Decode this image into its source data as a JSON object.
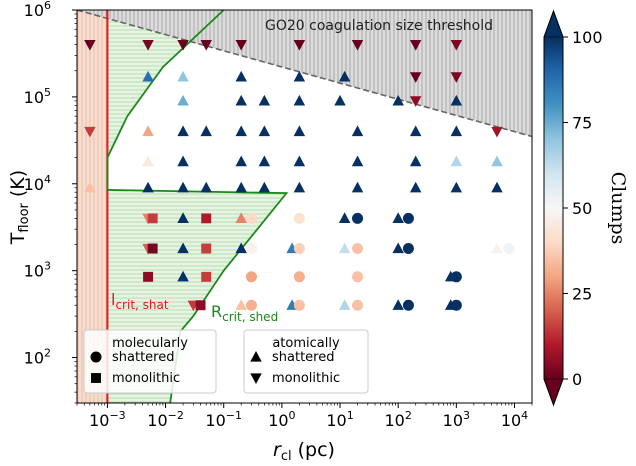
{
  "chart_data": {
    "type": "scatter",
    "x_scale": "log",
    "y_scale": "log",
    "xlim": [
      0.0003,
      20000
    ],
    "ylim": [
      30,
      1000000
    ],
    "xlabel_main": "r",
    "xlabel_sub": "cl",
    "xlabel_unit": " (pc)",
    "ylabel_main": "T",
    "ylabel_sub": "floor",
    "ylabel_unit": " (K)",
    "x_ticks": [
      {
        "value": 0.001,
        "base": "10",
        "exp": "−3"
      },
      {
        "value": 0.01,
        "base": "10",
        "exp": "−2"
      },
      {
        "value": 0.1,
        "base": "10",
        "exp": "−1"
      },
      {
        "value": 1,
        "base": "10",
        "exp": "0"
      },
      {
        "value": 10,
        "base": "10",
        "exp": "1"
      },
      {
        "value": 100,
        "base": "10",
        "exp": "2"
      },
      {
        "value": 1000,
        "base": "10",
        "exp": "3"
      },
      {
        "value": 10000,
        "base": "10",
        "exp": "4"
      }
    ],
    "y_ticks": [
      {
        "value": 100,
        "base": "10",
        "exp": "2"
      },
      {
        "value": 1000,
        "base": "10",
        "exp": "3"
      },
      {
        "value": 10000,
        "base": "10",
        "exp": "4"
      },
      {
        "value": 100000,
        "base": "10",
        "exp": "5"
      },
      {
        "value": 1000000,
        "base": "10",
        "exp": "6"
      }
    ],
    "colorbar": {
      "label": "Clumps",
      "min": 0,
      "max": 100,
      "ticks": [
        0,
        25,
        50,
        75,
        100
      ],
      "colormap": [
        "#67001f",
        "#b2182b",
        "#d6604d",
        "#f4a582",
        "#fddbc7",
        "#f7f7f7",
        "#d1e5f0",
        "#92c5de",
        "#4393c3",
        "#2166ac",
        "#053061"
      ],
      "extend": "both"
    },
    "annotations": {
      "coag_label": "GO20 coagulation size threshold",
      "lshat_main": "l",
      "lshat_sub": "crit, shat",
      "rshed_main": "R",
      "rshed_sub": "crit, shed"
    },
    "lines": {
      "lshat_x": 0.001,
      "lshat_color": "#e41a1c",
      "coag_line": [
        [
          0.0003,
          1000000
        ],
        [
          20000,
          35000
        ]
      ],
      "rshed_color": "#1a8a1a",
      "rshed_curve": [
        [
          0.001,
          8500
        ],
        [
          0.001,
          20000
        ],
        [
          0.0022,
          60000
        ],
        [
          0.009,
          220000
        ],
        [
          0.1,
          1000000
        ]
      ],
      "rshed_lower": [
        [
          0.001,
          8500
        ],
        [
          1.2,
          7800
        ],
        [
          0.1,
          1000
        ],
        [
          0.03,
          300
        ],
        [
          0.018,
          200
        ],
        [
          0.012,
          30
        ]
      ]
    },
    "legend": {
      "group1_title": "molecularly",
      "group2_title": "atomically",
      "entries": [
        {
          "group": 1,
          "marker": "circle",
          "label": "shattered"
        },
        {
          "group": 1,
          "marker": "square",
          "label": "monolithic"
        },
        {
          "group": 2,
          "marker": "triangle-up",
          "label": "shattered"
        },
        {
          "group": 2,
          "marker": "triangle-down",
          "label": "monolithic"
        }
      ]
    },
    "points": [
      {
        "x": 0.0005,
        "y": 400000,
        "m": "td",
        "c": 0
      },
      {
        "x": 0.005,
        "y": 400000,
        "m": "td",
        "c": 2
      },
      {
        "x": 0.02,
        "y": 400000,
        "m": "td",
        "c": 0
      },
      {
        "x": 0.05,
        "y": 400000,
        "m": "td",
        "c": 0
      },
      {
        "x": 0.2,
        "y": 400000,
        "m": "td",
        "c": 0
      },
      {
        "x": 2,
        "y": 400000,
        "m": "td",
        "c": 0
      },
      {
        "x": 20,
        "y": 400000,
        "m": "td",
        "c": 0
      },
      {
        "x": 200,
        "y": 400000,
        "m": "td",
        "c": 0
      },
      {
        "x": 1000,
        "y": 400000,
        "m": "td",
        "c": 3
      },
      {
        "x": 0.005,
        "y": 170000,
        "m": "tu",
        "c": 88
      },
      {
        "x": 0.02,
        "y": 170000,
        "m": "tu",
        "c": 70
      },
      {
        "x": 0.2,
        "y": 170000,
        "m": "tu",
        "c": 100
      },
      {
        "x": 2,
        "y": 170000,
        "m": "tu",
        "c": 100
      },
      {
        "x": 12,
        "y": 170000,
        "m": "tu",
        "c": 100
      },
      {
        "x": 200,
        "y": 170000,
        "m": "td",
        "c": 0
      },
      {
        "x": 1000,
        "y": 170000,
        "m": "td",
        "c": 3
      },
      {
        "x": 0.02,
        "y": 90000,
        "m": "tu",
        "c": 75
      },
      {
        "x": 0.2,
        "y": 90000,
        "m": "tu",
        "c": 100
      },
      {
        "x": 0.5,
        "y": 90000,
        "m": "tu",
        "c": 100
      },
      {
        "x": 2,
        "y": 90000,
        "m": "tu",
        "c": 100
      },
      {
        "x": 10,
        "y": 90000,
        "m": "tu",
        "c": 100
      },
      {
        "x": 100,
        "y": 90000,
        "m": "tu",
        "c": 100
      },
      {
        "x": 1000,
        "y": 90000,
        "m": "tu",
        "c": 100
      },
      {
        "x": 200,
        "y": 90000,
        "m": "td",
        "c": 5
      },
      {
        "x": 0.0005,
        "y": 40000,
        "m": "td",
        "c": 15
      },
      {
        "x": 0.005,
        "y": 40000,
        "m": "tu",
        "c": 30
      },
      {
        "x": 0.02,
        "y": 40000,
        "m": "tu",
        "c": 100
      },
      {
        "x": 0.05,
        "y": 40000,
        "m": "tu",
        "c": 100
      },
      {
        "x": 0.2,
        "y": 40000,
        "m": "tu",
        "c": 100
      },
      {
        "x": 0.5,
        "y": 40000,
        "m": "tu",
        "c": 100
      },
      {
        "x": 2,
        "y": 40000,
        "m": "tu",
        "c": 100
      },
      {
        "x": 20,
        "y": 40000,
        "m": "tu",
        "c": 100
      },
      {
        "x": 200,
        "y": 40000,
        "m": "tu",
        "c": 100
      },
      {
        "x": 1000,
        "y": 40000,
        "m": "tu",
        "c": 100
      },
      {
        "x": 5000,
        "y": 40000,
        "m": "td",
        "c": 8
      },
      {
        "x": 0.005,
        "y": 18000,
        "m": "tu",
        "c": 45
      },
      {
        "x": 0.02,
        "y": 18000,
        "m": "tu",
        "c": 100
      },
      {
        "x": 0.2,
        "y": 18000,
        "m": "tu",
        "c": 100
      },
      {
        "x": 0.5,
        "y": 18000,
        "m": "tu",
        "c": 100
      },
      {
        "x": 2,
        "y": 18000,
        "m": "tu",
        "c": 100
      },
      {
        "x": 20,
        "y": 18000,
        "m": "tu",
        "c": 100
      },
      {
        "x": 200,
        "y": 18000,
        "m": "tu",
        "c": 100
      },
      {
        "x": 1000,
        "y": 18000,
        "m": "tu",
        "c": 65
      },
      {
        "x": 5000,
        "y": 18000,
        "m": "tu",
        "c": 70
      },
      {
        "x": 0.0005,
        "y": 9000,
        "m": "tu",
        "c": 35
      },
      {
        "x": 0.005,
        "y": 9000,
        "m": "tu",
        "c": 100
      },
      {
        "x": 0.02,
        "y": 9000,
        "m": "tu",
        "c": 100
      },
      {
        "x": 0.05,
        "y": 9000,
        "m": "tu",
        "c": 100
      },
      {
        "x": 0.2,
        "y": 9000,
        "m": "tu",
        "c": 100
      },
      {
        "x": 0.5,
        "y": 9000,
        "m": "tu",
        "c": 100
      },
      {
        "x": 2,
        "y": 9000,
        "m": "tu",
        "c": 100
      },
      {
        "x": 20,
        "y": 9000,
        "m": "tu",
        "c": 100
      },
      {
        "x": 200,
        "y": 9000,
        "m": "tu",
        "c": 100
      },
      {
        "x": 1000,
        "y": 9000,
        "m": "tu",
        "c": 100
      },
      {
        "x": 5000,
        "y": 9000,
        "m": "tu",
        "c": 100
      },
      {
        "x": 0.005,
        "y": 4000,
        "m": "td",
        "c": 25
      },
      {
        "x": 0.006,
        "y": 4000,
        "m": "sq",
        "c": 15
      },
      {
        "x": 0.02,
        "y": 4000,
        "m": "tu",
        "c": 100
      },
      {
        "x": 0.05,
        "y": 4000,
        "m": "sq",
        "c": 10
      },
      {
        "x": 0.2,
        "y": 4000,
        "m": "tu",
        "c": 25
      },
      {
        "x": 0.3,
        "y": 4000,
        "m": "ci",
        "c": 40
      },
      {
        "x": 2,
        "y": 4000,
        "m": "ci",
        "c": 42
      },
      {
        "x": 12,
        "y": 4000,
        "m": "tu",
        "c": 100
      },
      {
        "x": 20,
        "y": 4000,
        "m": "ci",
        "c": 100
      },
      {
        "x": 100,
        "y": 4000,
        "m": "tu",
        "c": 100
      },
      {
        "x": 150,
        "y": 4000,
        "m": "ci",
        "c": 100
      },
      {
        "x": 0.005,
        "y": 1800,
        "m": "td",
        "c": 20
      },
      {
        "x": 0.006,
        "y": 1800,
        "m": "sq",
        "c": 2
      },
      {
        "x": 0.02,
        "y": 1800,
        "m": "tu",
        "c": 100
      },
      {
        "x": 0.05,
        "y": 1800,
        "m": "sq",
        "c": 15
      },
      {
        "x": 0.2,
        "y": 1800,
        "m": "tu",
        "c": 100
      },
      {
        "x": 0.3,
        "y": 1800,
        "m": "ci",
        "c": 48
      },
      {
        "x": 1.5,
        "y": 1800,
        "m": "tu",
        "c": 85
      },
      {
        "x": 2,
        "y": 1800,
        "m": "ci",
        "c": 38
      },
      {
        "x": 12,
        "y": 1800,
        "m": "tu",
        "c": 62
      },
      {
        "x": 20,
        "y": 1800,
        "m": "ci",
        "c": 35
      },
      {
        "x": 100,
        "y": 1800,
        "m": "tu",
        "c": 100
      },
      {
        "x": 150,
        "y": 1800,
        "m": "ci",
        "c": 100
      },
      {
        "x": 5000,
        "y": 1800,
        "m": "tu",
        "c": 48
      },
      {
        "x": 8000,
        "y": 1800,
        "m": "ci",
        "c": 52
      },
      {
        "x": 0.005,
        "y": 850,
        "m": "sq",
        "c": 5
      },
      {
        "x": 0.02,
        "y": 850,
        "m": "tu",
        "c": 100
      },
      {
        "x": 0.05,
        "y": 850,
        "m": "sq",
        "c": 15
      },
      {
        "x": 0.3,
        "y": 850,
        "m": "ci",
        "c": 30
      },
      {
        "x": 2,
        "y": 850,
        "m": "ci",
        "c": 32
      },
      {
        "x": 20,
        "y": 850,
        "m": "ci",
        "c": 35
      },
      {
        "x": 800,
        "y": 850,
        "m": "tu",
        "c": 100
      },
      {
        "x": 1000,
        "y": 850,
        "m": "ci",
        "c": 100
      },
      {
        "x": 0.03,
        "y": 400,
        "m": "td",
        "c": 15
      },
      {
        "x": 0.04,
        "y": 400,
        "m": "sq",
        "c": 5
      },
      {
        "x": 0.2,
        "y": 400,
        "m": "tu",
        "c": 35
      },
      {
        "x": 0.3,
        "y": 400,
        "m": "ci",
        "c": 32
      },
      {
        "x": 1.5,
        "y": 400,
        "m": "tu",
        "c": 85
      },
      {
        "x": 2,
        "y": 400,
        "m": "ci",
        "c": 35
      },
      {
        "x": 12,
        "y": 400,
        "m": "tu",
        "c": 65
      },
      {
        "x": 20,
        "y": 400,
        "m": "ci",
        "c": 35
      },
      {
        "x": 100,
        "y": 400,
        "m": "tu",
        "c": 100
      },
      {
        "x": 150,
        "y": 400,
        "m": "ci",
        "c": 100
      },
      {
        "x": 800,
        "y": 400,
        "m": "tu",
        "c": 100
      },
      {
        "x": 1000,
        "y": 400,
        "m": "ci",
        "c": 100
      }
    ]
  }
}
